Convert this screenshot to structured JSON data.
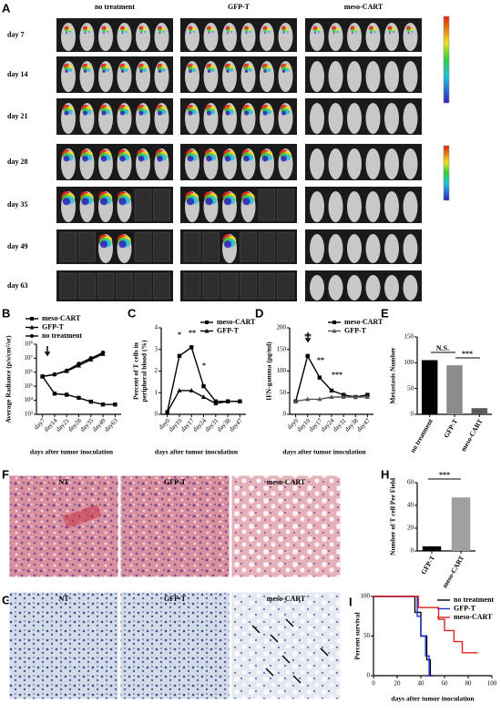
{
  "panel_labels": [
    "A",
    "B",
    "C",
    "D",
    "E",
    "F",
    "G",
    "H",
    "I"
  ],
  "imaging": {
    "groups": [
      "no treatment",
      "GFP-T",
      "meso-CART"
    ],
    "days": [
      "day 7",
      "day 14",
      "day 21",
      "day 28",
      "day 35",
      "day 49",
      "day 63"
    ]
  },
  "histology_f": {
    "groups": [
      "NT",
      "GFP-T",
      "meso-CART"
    ]
  },
  "histology_g": {
    "groups": [
      "NT",
      "GFP-T",
      "meso-CART"
    ]
  },
  "chart_data": [
    {
      "type": "line",
      "ylabel": "Average Radiance (p/s/cm²/sr)",
      "xlabel": "days after tumor inoculation",
      "categories": [
        "day7",
        "day14",
        "day21",
        "day28",
        "day35",
        "day49",
        "day63"
      ],
      "log_y": true,
      "ylim": [
        1000,
        100000000
      ],
      "yticks": [
        {
          "value": 1000,
          "label": "10³"
        },
        {
          "value": 10000,
          "label": "10⁴"
        },
        {
          "value": 100000,
          "label": "10⁵"
        },
        {
          "value": 1000000,
          "label": "10⁶"
        },
        {
          "value": 10000000,
          "label": "10⁷"
        },
        {
          "value": 100000000,
          "label": "10⁸"
        }
      ],
      "series": [
        {
          "name": "meso-CART",
          "color": "#000000",
          "marker": "square",
          "values": [
            500000,
            30000,
            25000,
            15000,
            8000,
            5000,
            5000
          ]
        },
        {
          "name": "GFP-T",
          "color": "#000000",
          "marker": "triangle",
          "values": [
            500000,
            700000,
            1200000,
            3000000,
            8000000,
            20000000,
            null
          ]
        },
        {
          "name": "no treatment",
          "color": "#000000",
          "marker": "circle",
          "values": [
            500000,
            700000,
            1300000,
            4000000,
            10000000,
            25000000,
            null
          ]
        }
      ]
    },
    {
      "type": "line",
      "ylabel": [
        "Percent of T cells in",
        "peripheral blood (%)"
      ],
      "xlabel": "days after tumor inoculation",
      "categories": [
        "day0",
        "day10",
        "day17",
        "day24",
        "day31",
        "day38",
        "day47"
      ],
      "ylim": [
        0,
        4
      ],
      "yticks": [
        0,
        1,
        2,
        3,
        4
      ],
      "series": [
        {
          "name": "meso-CART",
          "color": "#000000",
          "marker": "square",
          "values": [
            0.1,
            2.7,
            3.1,
            1.3,
            0.6,
            0.6,
            0.6
          ]
        },
        {
          "name": "GFP-T",
          "color": "#000000",
          "marker": "triangle",
          "values": [
            0.1,
            1.1,
            1.1,
            0.8,
            0.5,
            0.6,
            0.6
          ]
        }
      ],
      "annotations": [
        "*",
        "**",
        "*"
      ]
    },
    {
      "type": "line",
      "ylabel": "IFN-gamma (pg/ml)",
      "xlabel": "days after tumor inoculation",
      "categories": [
        "day0",
        "day10",
        "day17",
        "day24",
        "day31",
        "day38",
        "day47"
      ],
      "ylim": [
        0,
        200
      ],
      "yticks": [
        0,
        50,
        100,
        150,
        200
      ],
      "series": [
        {
          "name": "meso-CART",
          "color": "#000000",
          "marker": "square",
          "values": [
            30,
            135,
            85,
            55,
            45,
            40,
            45
          ]
        },
        {
          "name": "GFP-T",
          "color": "#555555",
          "marker": "triangle",
          "values": [
            30,
            35,
            35,
            40,
            40,
            40,
            40
          ]
        }
      ],
      "annotations": [
        "**",
        "**",
        "***"
      ]
    },
    {
      "type": "bar",
      "ylabel": "Metastasis Number",
      "categories": [
        "no treatment",
        "GFP-T",
        "meso-CART"
      ],
      "values": [
        105,
        95,
        12
      ],
      "colors": [
        "#000000",
        "#8c8c8c",
        "#5a5a5a"
      ],
      "ylim": [
        0,
        150
      ],
      "yticks": [
        0,
        50,
        100,
        150
      ],
      "annotations": [
        "N.S.",
        "***"
      ]
    },
    {
      "type": "bar",
      "ylabel": "Number of T cell Per Field",
      "categories": [
        "GFP-T",
        "meso-CART"
      ],
      "values": [
        4,
        47
      ],
      "colors": [
        "#000000",
        "#a0a0a0"
      ],
      "ylim": [
        0,
        60
      ],
      "yticks": [
        0,
        20,
        40,
        60
      ],
      "annotations": [
        "***"
      ]
    },
    {
      "type": "line",
      "step": true,
      "ylabel": "Percent survival",
      "xlabel": "days after tumor inoculation",
      "xlim": [
        0,
        100
      ],
      "xticks": [
        0,
        20,
        40,
        60,
        80,
        100
      ],
      "ylim": [
        0,
        100
      ],
      "yticks": [
        0,
        50,
        100
      ],
      "series": [
        {
          "name": "no treatment",
          "color": "#000000",
          "x": [
            0,
            35,
            35,
            40,
            40,
            45,
            45,
            48,
            48,
            50
          ],
          "values": [
            100,
            100,
            80,
            80,
            50,
            50,
            20,
            20,
            0,
            0
          ]
        },
        {
          "name": "GFP-T",
          "color": "#1f2fd0",
          "x": [
            0,
            37,
            37,
            40,
            40,
            44,
            44,
            47,
            47,
            50
          ],
          "values": [
            100,
            100,
            75,
            75,
            50,
            50,
            25,
            25,
            0,
            0
          ]
        },
        {
          "name": "meso-CART",
          "color": "#e02020",
          "x": [
            0,
            38,
            38,
            55,
            55,
            60,
            60,
            68,
            68,
            75,
            75,
            88
          ],
          "values": [
            100,
            100,
            86,
            86,
            71,
            71,
            57,
            57,
            43,
            43,
            29,
            29
          ]
        }
      ]
    }
  ]
}
